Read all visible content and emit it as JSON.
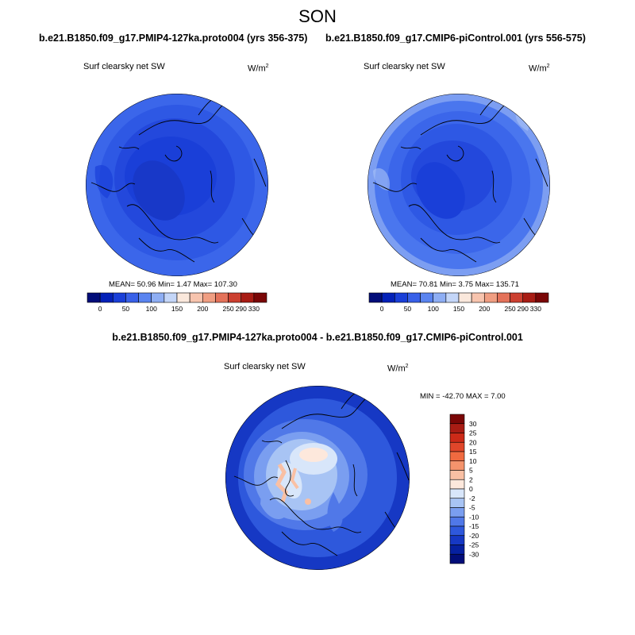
{
  "figure": {
    "title": "SON",
    "case_a": "b.e21.B1850.f09_g17.PMIP4-127ka.proto004 (yrs 356-375)",
    "case_b": "b.e21.B1850.f09_g17.CMIP6-piControl.001 (yrs 556-575)",
    "diff_title": "b.e21.B1850.f09_g17.PMIP4-127ka.proto004 - b.e21.B1850.f09_g17.CMIP6-piControl.001"
  },
  "panels": [
    {
      "field": "Surf clearsky net SW",
      "units_base": "W/m",
      "units_exp": "2",
      "stats": "MEAN=  50.96  Min=    1.47  Max= 107.30"
    },
    {
      "field": "Surf clearsky net SW",
      "units_base": "W/m",
      "units_exp": "2",
      "stats": "MEAN=  70.81  Min=    3.75  Max= 135.71"
    },
    {
      "field": "Surf clearsky net SW",
      "units_base": "W/m",
      "units_exp": "2",
      "stats": "MIN = -42.70 MAX =   7.00"
    }
  ],
  "colorbar_abs": {
    "ticks": [
      "0",
      "50",
      "100",
      "150",
      "200",
      "250",
      "290",
      "330"
    ],
    "colors": [
      "#020d79",
      "#0421b8",
      "#1a3fd8",
      "#3860e8",
      "#5a84f0",
      "#8eaef4",
      "#c4d6f8",
      "#fae8dc",
      "#f7c4ae",
      "#f09e82",
      "#e4725a",
      "#cc4030",
      "#a81c14",
      "#7a0606"
    ]
  },
  "colorbar_diff": {
    "ticks": [
      "30",
      "25",
      "20",
      "15",
      "10",
      "5",
      "2",
      "0",
      "-2",
      "-5",
      "-10",
      "-15",
      "-20",
      "-25",
      "-30"
    ],
    "colors": [
      "#7a0606",
      "#a81c14",
      "#cc2a18",
      "#e0462a",
      "#f06a40",
      "#f5946c",
      "#f9c0a4",
      "#fde8dc",
      "#d8e6fa",
      "#a8c4f4",
      "#7a9ef0",
      "#5078e8",
      "#2e58dc",
      "#1638c4",
      "#0620a0",
      "#020d79"
    ]
  },
  "map_colors": {
    "deep": "#1a3fd8",
    "mid": "#2e58e4",
    "light": "#3b66ea",
    "edge": "#4a76ee",
    "paleBlue": "#7c9ef2",
    "palest": "#a8c2f6"
  }
}
